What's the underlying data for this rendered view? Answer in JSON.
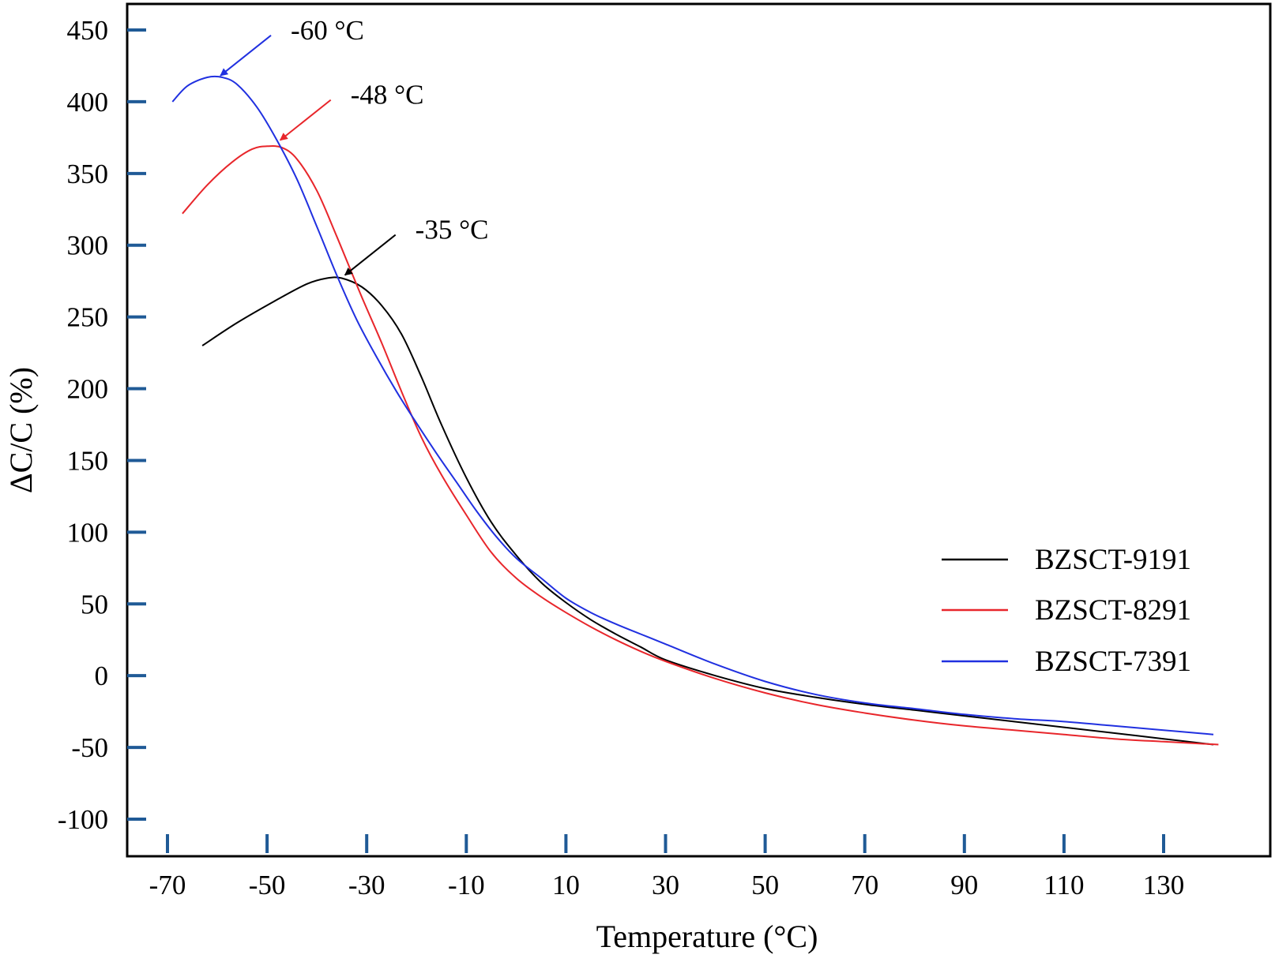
{
  "chart_data": {
    "type": "line",
    "title": "",
    "xlabel": "Temperature (°C)",
    "ylabel": "ΔC/C (%)",
    "xlim": [
      -80,
      145
    ],
    "ylim": [
      -125,
      470
    ],
    "x_ticks": [
      -70,
      -50,
      -30,
      -10,
      10,
      30,
      50,
      70,
      90,
      110,
      130
    ],
    "y_ticks": [
      450,
      400,
      350,
      300,
      250,
      200,
      150,
      100,
      50,
      0,
      -50,
      -100
    ],
    "grid": false,
    "legend_position": "right",
    "series": [
      {
        "name": "BZSCT-9191",
        "color": "#000000",
        "points": [
          [
            -63,
            230
          ],
          [
            -56,
            246
          ],
          [
            -48,
            262
          ],
          [
            -42,
            273
          ],
          [
            -38,
            277
          ],
          [
            -35,
            277
          ],
          [
            -31,
            271
          ],
          [
            -27,
            258
          ],
          [
            -23,
            238
          ],
          [
            -19,
            208
          ],
          [
            -15,
            175
          ],
          [
            -10,
            138
          ],
          [
            -5,
            107
          ],
          [
            0,
            84
          ],
          [
            5,
            65
          ],
          [
            10,
            51
          ],
          [
            15,
            39
          ],
          [
            20,
            29
          ],
          [
            25,
            20
          ],
          [
            30,
            11
          ],
          [
            40,
            0
          ],
          [
            50,
            -9
          ],
          [
            60,
            -15
          ],
          [
            70,
            -20
          ],
          [
            80,
            -24
          ],
          [
            90,
            -28
          ],
          [
            100,
            -32
          ],
          [
            110,
            -36
          ],
          [
            120,
            -40
          ],
          [
            130,
            -44
          ],
          [
            140,
            -48
          ]
        ]
      },
      {
        "name": "BZSCT-8291",
        "color": "#e8262b",
        "points": [
          [
            -67,
            322
          ],
          [
            -62,
            342
          ],
          [
            -57,
            358
          ],
          [
            -53,
            367
          ],
          [
            -50,
            369
          ],
          [
            -47,
            368
          ],
          [
            -44,
            360
          ],
          [
            -40,
            338
          ],
          [
            -36,
            306
          ],
          [
            -31,
            264
          ],
          [
            -27,
            232
          ],
          [
            -23,
            198
          ],
          [
            -19,
            166
          ],
          [
            -15,
            140
          ],
          [
            -10,
            112
          ],
          [
            -5,
            86
          ],
          [
            0,
            68
          ],
          [
            5,
            55
          ],
          [
            10,
            44
          ],
          [
            15,
            34
          ],
          [
            20,
            25
          ],
          [
            25,
            17
          ],
          [
            30,
            10
          ],
          [
            40,
            -2
          ],
          [
            50,
            -12
          ],
          [
            60,
            -20
          ],
          [
            70,
            -26
          ],
          [
            80,
            -31
          ],
          [
            90,
            -35
          ],
          [
            100,
            -38
          ],
          [
            110,
            -41
          ],
          [
            120,
            -44
          ],
          [
            130,
            -46
          ],
          [
            141,
            -48
          ]
        ]
      },
      {
        "name": "BZSCT-7391",
        "color": "#2030e0",
        "points": [
          [
            -69,
            400
          ],
          [
            -66,
            411
          ],
          [
            -62,
            417
          ],
          [
            -59,
            417
          ],
          [
            -56,
            412
          ],
          [
            -52,
            396
          ],
          [
            -48,
            373
          ],
          [
            -44,
            346
          ],
          [
            -40,
            313
          ],
          [
            -36,
            279
          ],
          [
            -32,
            248
          ],
          [
            -28,
            222
          ],
          [
            -24,
            198
          ],
          [
            -20,
            176
          ],
          [
            -16,
            155
          ],
          [
            -12,
            135
          ],
          [
            -8,
            115
          ],
          [
            -4,
            97
          ],
          [
            0,
            82
          ],
          [
            5,
            68
          ],
          [
            10,
            54
          ],
          [
            15,
            44
          ],
          [
            20,
            36
          ],
          [
            25,
            29
          ],
          [
            30,
            22
          ],
          [
            40,
            8
          ],
          [
            50,
            -4
          ],
          [
            60,
            -13
          ],
          [
            70,
            -19
          ],
          [
            80,
            -23
          ],
          [
            90,
            -27
          ],
          [
            100,
            -30
          ],
          [
            110,
            -32
          ],
          [
            120,
            -35
          ],
          [
            130,
            -38
          ],
          [
            140,
            -41
          ]
        ]
      }
    ],
    "annotations": [
      {
        "text": "-60 °C",
        "series": "BZSCT-7391",
        "x": -60,
        "y": 416,
        "color": "#2030e0"
      },
      {
        "text": "-48 °C",
        "series": "BZSCT-8291",
        "x": -48,
        "y": 371,
        "color": "#e8262b"
      },
      {
        "text": "-35 °C",
        "series": "BZSCT-9191",
        "x": -35,
        "y": 277,
        "color": "#000000"
      }
    ]
  },
  "colors": {
    "tick_color": "#1f5a96",
    "frame_color": "#000000"
  }
}
